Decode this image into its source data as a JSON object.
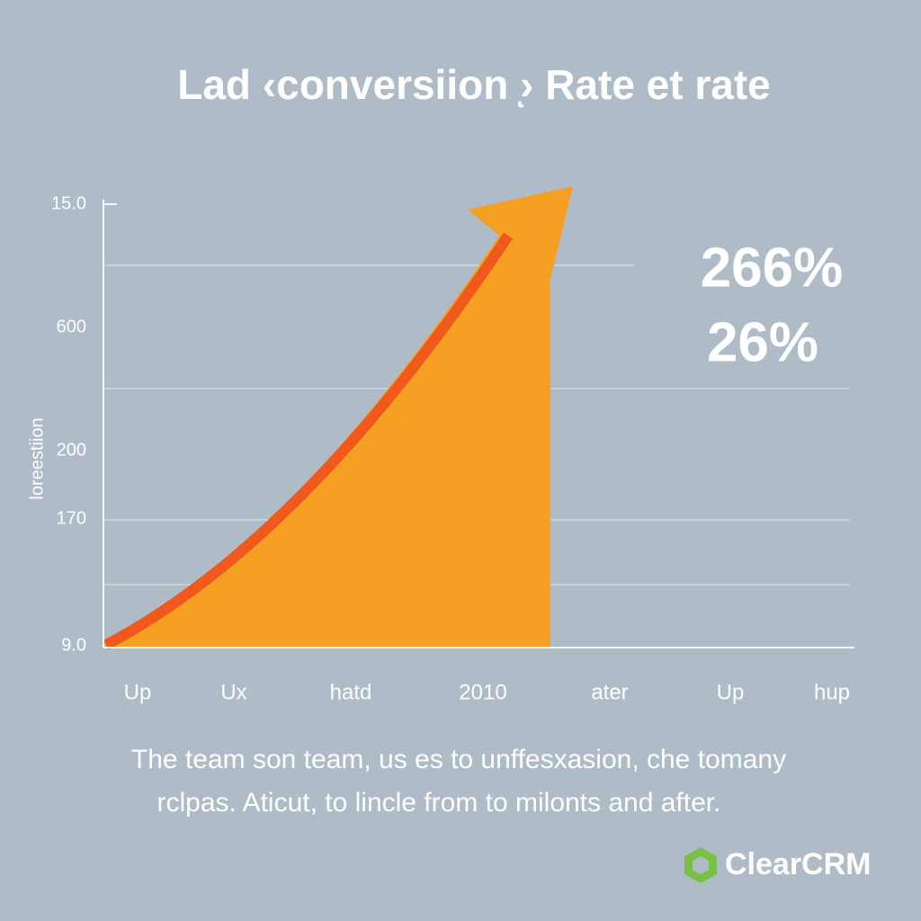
{
  "chart_data": {
    "type": "area",
    "title": "Lad ‹conversiion ͅ› Rate et rate",
    "y_axis_label": "loreestiion",
    "y_labels": [
      "15.0",
      "600",
      "200",
      "170",
      "9.0"
    ],
    "categories": [
      "Up",
      "Ux",
      "hatd",
      "2010",
      "ater",
      "Up",
      "hup"
    ],
    "annotations": [
      "266%",
      "26%"
    ],
    "caption": [
      "The team son team, us es to unffesxasion, che tomany",
      "rclpas. Aticut, to lincle from to milonts and after."
    ],
    "brand": "ClearCRM"
  }
}
